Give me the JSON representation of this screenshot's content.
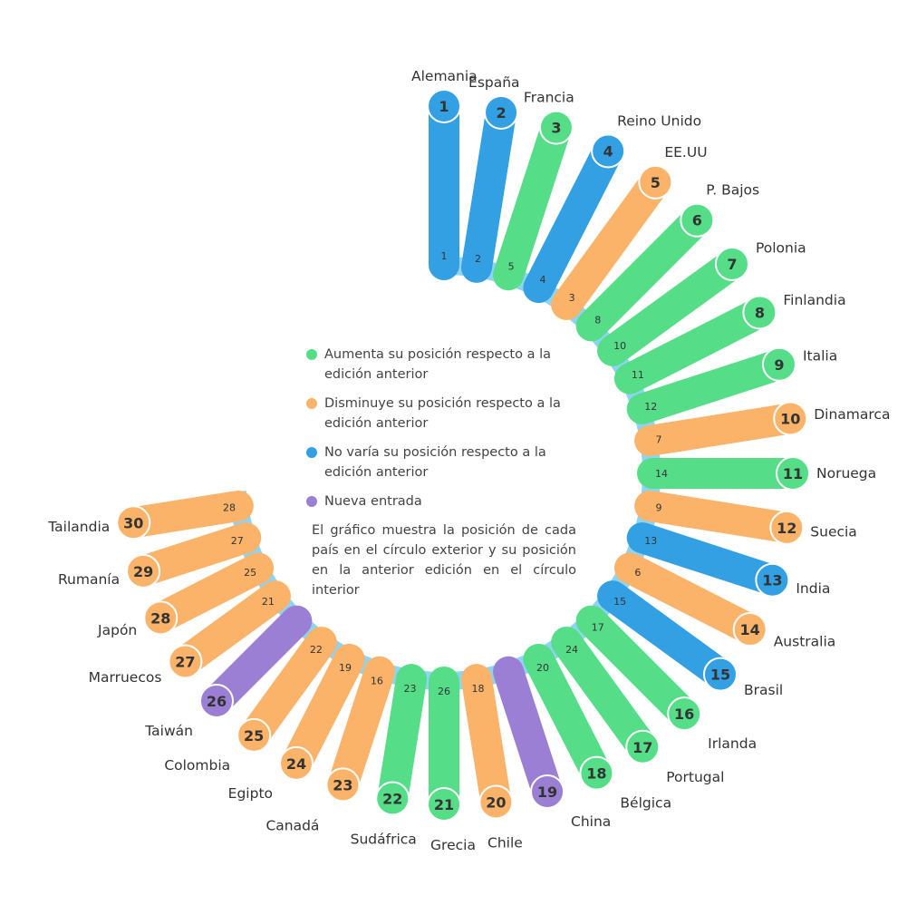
{
  "chart_data": {
    "type": "radial-bar",
    "title": "",
    "colors": {
      "aumenta": "#55dd88",
      "disminuye": "#fbb36a",
      "no_varia": "#33a0e3",
      "nueva": "#9b7fd4",
      "ring": "#8ed4f2"
    },
    "legend": [
      {
        "key": "aumenta",
        "label": "Aumenta su posición respecto a la edición anterior"
      },
      {
        "key": "disminuye",
        "label": "Disminuye su posición respecto a la edición anterior"
      },
      {
        "key": "no_varia",
        "label": "No varía su posición respecto a la edición anterior"
      },
      {
        "key": "nueva",
        "label": "Nueva entrada"
      }
    ],
    "note": "El gráfico muestra la posición de cada país en el círculo exterior y su posición en la anterior edición en el círculo interior",
    "countries": [
      {
        "rank": 1,
        "name": "Alemania",
        "prev": 1,
        "status": "no_varia"
      },
      {
        "rank": 2,
        "name": "España",
        "prev": 2,
        "status": "no_varia"
      },
      {
        "rank": 3,
        "name": "Francia",
        "prev": 5,
        "status": "aumenta"
      },
      {
        "rank": 4,
        "name": "Reino Unido",
        "prev": 4,
        "status": "no_varia"
      },
      {
        "rank": 5,
        "name": "EE.UU",
        "prev": 3,
        "status": "disminuye"
      },
      {
        "rank": 6,
        "name": "P. Bajos",
        "prev": 8,
        "status": "aumenta"
      },
      {
        "rank": 7,
        "name": "Polonia",
        "prev": 10,
        "status": "aumenta"
      },
      {
        "rank": 8,
        "name": "Finlandia",
        "prev": 11,
        "status": "aumenta"
      },
      {
        "rank": 9,
        "name": "Italia",
        "prev": 12,
        "status": "aumenta"
      },
      {
        "rank": 10,
        "name": "Dinamarca",
        "prev": 7,
        "status": "disminuye"
      },
      {
        "rank": 11,
        "name": "Noruega",
        "prev": 14,
        "status": "aumenta"
      },
      {
        "rank": 12,
        "name": "Suecia",
        "prev": 9,
        "status": "disminuye"
      },
      {
        "rank": 13,
        "name": "India",
        "prev": 13,
        "status": "no_varia"
      },
      {
        "rank": 14,
        "name": "Australia",
        "prev": 6,
        "status": "disminuye"
      },
      {
        "rank": 15,
        "name": "Brasil",
        "prev": 15,
        "status": "no_varia"
      },
      {
        "rank": 16,
        "name": "Irlanda",
        "prev": 17,
        "status": "aumenta"
      },
      {
        "rank": 17,
        "name": "Portugal",
        "prev": 24,
        "status": "aumenta"
      },
      {
        "rank": 18,
        "name": "Bélgica",
        "prev": 20,
        "status": "aumenta"
      },
      {
        "rank": 19,
        "name": "China",
        "prev": null,
        "status": "nueva"
      },
      {
        "rank": 20,
        "name": "Chile",
        "prev": 18,
        "status": "disminuye"
      },
      {
        "rank": 21,
        "name": "Grecia",
        "prev": 26,
        "status": "aumenta"
      },
      {
        "rank": 22,
        "name": "Sudáfrica",
        "prev": 23,
        "status": "aumenta"
      },
      {
        "rank": 23,
        "name": "Canadá",
        "prev": 16,
        "status": "disminuye"
      },
      {
        "rank": 24,
        "name": "Egipto",
        "prev": 19,
        "status": "disminuye"
      },
      {
        "rank": 25,
        "name": "Colombia",
        "prev": 22,
        "status": "disminuye"
      },
      {
        "rank": 26,
        "name": "Taiwán",
        "prev": null,
        "status": "nueva"
      },
      {
        "rank": 27,
        "name": "Marruecos",
        "prev": 21,
        "status": "disminuye"
      },
      {
        "rank": 28,
        "name": "Japón",
        "prev": 25,
        "status": "disminuye"
      },
      {
        "rank": 29,
        "name": "Rumanía",
        "prev": 27,
        "status": "disminuye"
      },
      {
        "rank": 30,
        "name": "Tailandia",
        "prev": 28,
        "status": "disminuye"
      }
    ]
  }
}
